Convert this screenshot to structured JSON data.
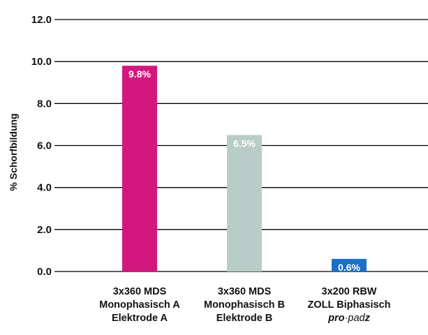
{
  "chart_data": {
    "type": "bar",
    "ylabel": "% Schorfbildung",
    "ylim": [
      0,
      12
    ],
    "yticks": [
      "0.0",
      "2.0",
      "4.0",
      "6.0",
      "8.0",
      "10.0",
      "12.0"
    ],
    "grid": true,
    "categories": [
      {
        "lines": [
          "3x360 MDS",
          "Monophasisch A",
          "Elektrode A"
        ],
        "value": 9.8,
        "value_label": "9.8%",
        "color": "#d4177e"
      },
      {
        "lines": [
          "3x360 MDS",
          "Monophasisch B",
          "Elektrode B"
        ],
        "value": 6.5,
        "value_label": "6.5%",
        "color": "#b8cdc7"
      },
      {
        "lines": [
          "3x200 RBW",
          "ZOLL Biphasisch"
        ],
        "brand_bold": "pro",
        "brand_separator": "·",
        "brand_light": "pad",
        "brand_end": "z",
        "value": 0.6,
        "value_label": "0.6%",
        "color": "#1b6fc7"
      }
    ]
  }
}
